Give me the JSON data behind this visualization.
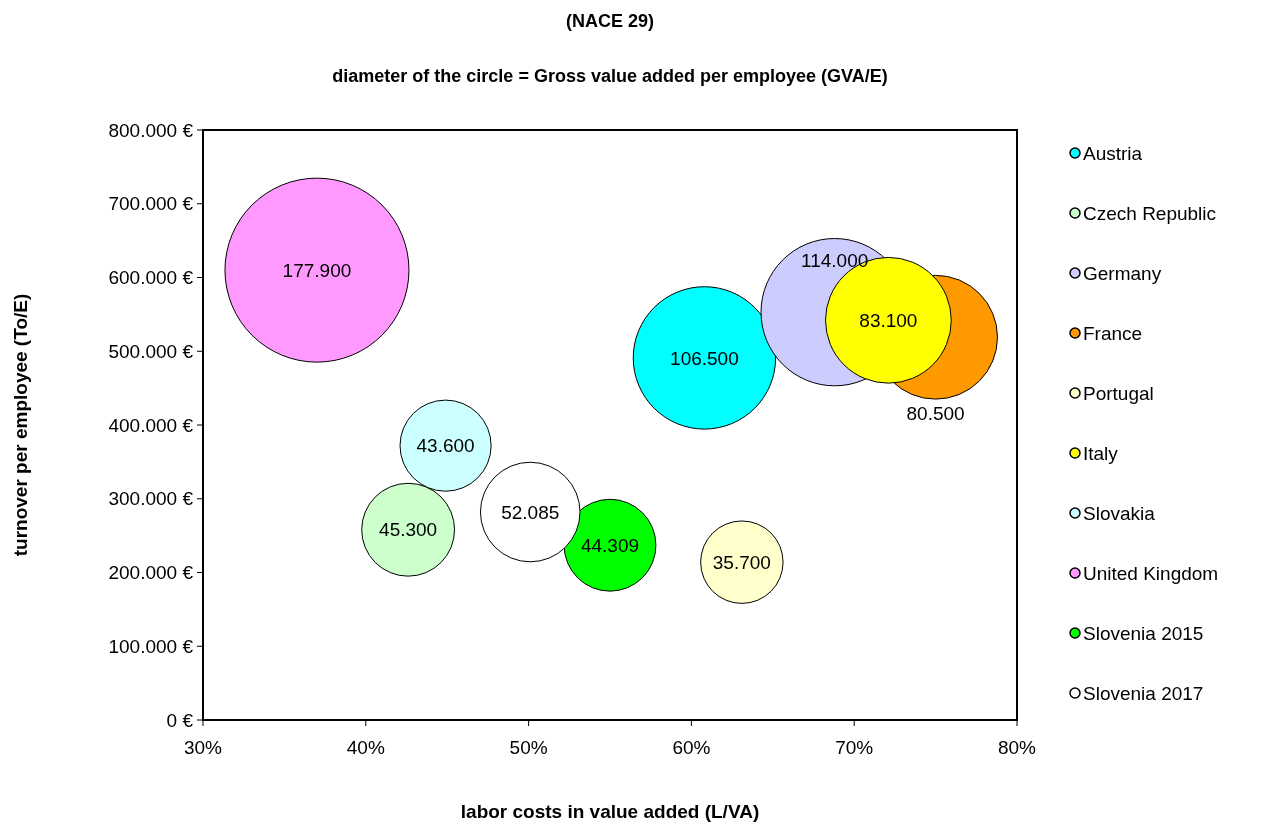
{
  "chart_data": {
    "type": "bubble",
    "title": "(NACE 29)",
    "subtitle": "diameter of the circle = Gross value added per employee  (GVA/E)",
    "xlabel": "labor costs in value added (L/VA)",
    "ylabel": "turnover per employee (To/E)",
    "xlim": [
      30,
      80
    ],
    "xticks": [
      {
        "value": 30,
        "label": "30%"
      },
      {
        "value": 40,
        "label": "40%"
      },
      {
        "value": 50,
        "label": "50%"
      },
      {
        "value": 60,
        "label": "60%"
      },
      {
        "value": 70,
        "label": "70%"
      },
      {
        "value": 80,
        "label": "80%"
      }
    ],
    "ylim": [
      0,
      800000
    ],
    "yticks": [
      {
        "value": 0,
        "label": "0 €"
      },
      {
        "value": 100000,
        "label": "100.000 €"
      },
      {
        "value": 200000,
        "label": "200.000 €"
      },
      {
        "value": 300000,
        "label": "300.000 €"
      },
      {
        "value": 400000,
        "label": "400.000 €"
      },
      {
        "value": 500000,
        "label": "500.000 €"
      },
      {
        "value": 600000,
        "label": "600.000 €"
      },
      {
        "value": 700000,
        "label": "700.000 €"
      },
      {
        "value": 800000,
        "label": "800.000 €"
      }
    ],
    "grid": false,
    "legend": "right",
    "marker": "circle",
    "series": [
      {
        "name": "Austria",
        "color": "#00ffff",
        "x": [
          60.8
        ],
        "values": [
          491000
        ],
        "sizes": [
          106500
        ],
        "value_labels": [
          "106.500"
        ]
      },
      {
        "name": "Czech Republic",
        "color": "#ccffcc",
        "x": [
          42.6
        ],
        "values": [
          258000
        ],
        "sizes": [
          45300
        ],
        "value_labels": [
          "45.300"
        ]
      },
      {
        "name": "Germany",
        "color": "#ccccff",
        "x": [
          68.8
        ],
        "values": [
          553000
        ],
        "sizes": [
          114000
        ],
        "value_labels": [
          "114.000"
        ]
      },
      {
        "name": "France",
        "color": "#ff9900",
        "x": [
          75.0
        ],
        "values": [
          519000
        ],
        "sizes": [
          80500
        ],
        "value_labels": [
          "80.500"
        ]
      },
      {
        "name": "Portugal",
        "color": "#ffffcc",
        "x": [
          63.1
        ],
        "values": [
          214000
        ],
        "sizes": [
          35700
        ],
        "value_labels": [
          "35.700"
        ]
      },
      {
        "name": "Italy",
        "color": "#ffff00",
        "x": [
          72.1
        ],
        "values": [
          542000
        ],
        "sizes": [
          83100
        ],
        "value_labels": [
          "83.100"
        ]
      },
      {
        "name": "Slovakia",
        "color": "#ccffff",
        "x": [
          44.9
        ],
        "values": [
          372000
        ],
        "sizes": [
          43600
        ],
        "value_labels": [
          "43.600"
        ]
      },
      {
        "name": "United Kingdom",
        "color": "#ff99ff",
        "x": [
          37.0
        ],
        "values": [
          610000
        ],
        "sizes": [
          177900
        ],
        "value_labels": [
          "177.900"
        ]
      },
      {
        "name": "Slovenia 2015",
        "color": "#00ff00",
        "x": [
          55.0
        ],
        "values": [
          237000
        ],
        "sizes": [
          44309
        ],
        "value_labels": [
          "44.309"
        ]
      },
      {
        "name": "Slovenia 2017",
        "color": "#ffffff",
        "x": [
          50.1
        ],
        "values": [
          282000
        ],
        "sizes": [
          52085
        ],
        "value_labels": [
          "52.085"
        ]
      }
    ]
  }
}
